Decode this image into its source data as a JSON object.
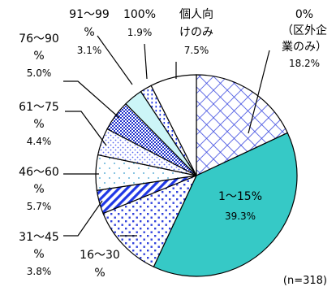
{
  "chart_data": {
    "type": "pie",
    "title": "",
    "note": "(n=318)",
    "start_angle_deg": 0,
    "direction": "clockwise",
    "slices": [
      {
        "label": "0%\n（区外企\n業のみ）",
        "value": 18.2,
        "value_text": "18.2%",
        "pattern": "crosshatch-blue"
      },
      {
        "label": "1～15%",
        "value": 39.3,
        "value_text": "39.3%",
        "pattern": "solid-teal"
      },
      {
        "label": "16～30\n%",
        "value": 12.0,
        "value_text": "",
        "pattern": "dots-blue"
      },
      {
        "label": "31～45\n%",
        "value": 3.8,
        "value_text": "3.8%",
        "pattern": "diagonal-blue"
      },
      {
        "label": "46～60\n%",
        "value": 5.7,
        "value_text": "5.7%",
        "pattern": "sparse-dots"
      },
      {
        "label": "61～75\n%",
        "value": 4.4,
        "value_text": "4.4%",
        "pattern": "light-dots"
      },
      {
        "label": "76～90\n%",
        "value": 5.0,
        "value_text": "5.0%",
        "pattern": "checker-blue"
      },
      {
        "label": "91～99\n%",
        "value": 3.1,
        "value_text": "3.1%",
        "pattern": "light-cyan"
      },
      {
        "label": "100%",
        "value": 1.9,
        "value_text": "1.9%",
        "pattern": "vertical-dots"
      },
      {
        "label": "個人向\nけのみ",
        "value": 7.5,
        "value_text": "7.5%",
        "pattern": "white"
      }
    ]
  }
}
